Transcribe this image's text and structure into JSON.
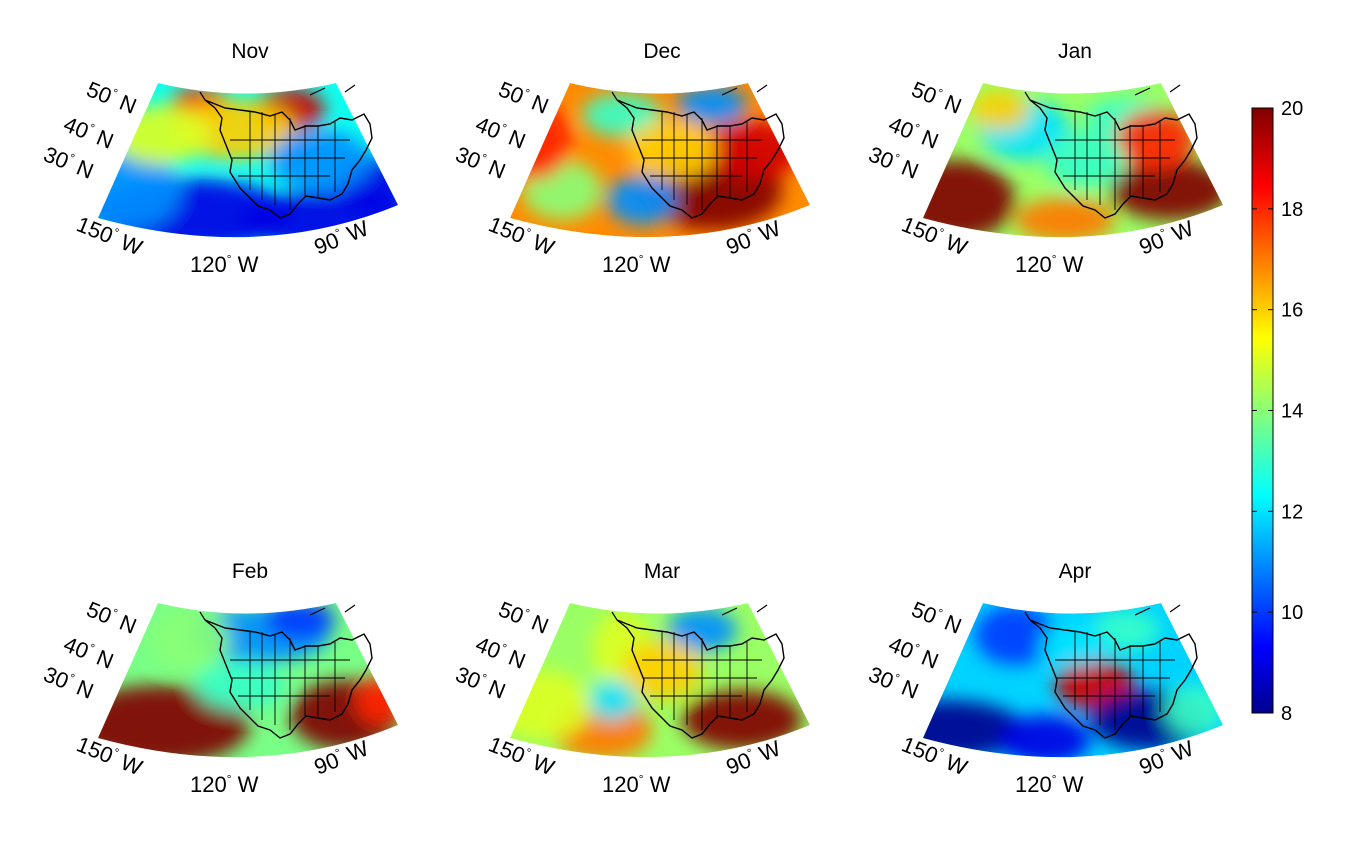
{
  "figure": {
    "panels": [
      {
        "title": "Nov",
        "pattern": "nov"
      },
      {
        "title": "Dec",
        "pattern": "dec"
      },
      {
        "title": "Jan",
        "pattern": "jan"
      },
      {
        "title": "Feb",
        "pattern": "feb"
      },
      {
        "title": "Mar",
        "pattern": "mar"
      },
      {
        "title": "Apr",
        "pattern": "apr"
      }
    ],
    "lat_labels": [
      "50",
      "40",
      "30"
    ],
    "lat_suffix": "N",
    "lon_labels": [
      "150",
      "120",
      "90"
    ],
    "lon_suffix": "W",
    "degree_symbol": "°"
  },
  "colorbar": {
    "min": 8,
    "max": 20,
    "ticks": [
      "20",
      "18",
      "16",
      "14",
      "12",
      "10",
      "8"
    ],
    "colormap": "jet",
    "colors": [
      "#00008f",
      "#0000ff",
      "#00ffff",
      "#ffff00",
      "#ff0000",
      "#800000"
    ]
  }
}
